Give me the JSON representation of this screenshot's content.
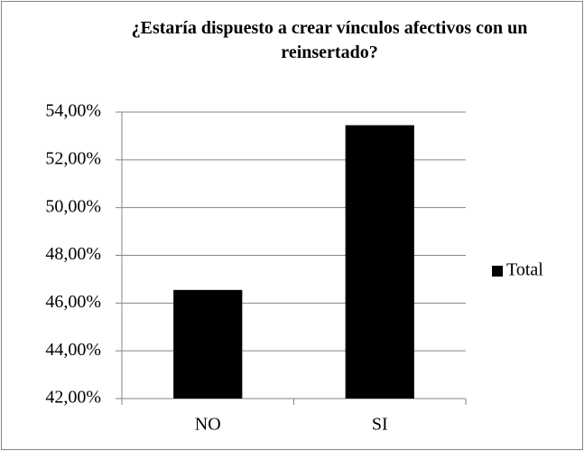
{
  "chart_data": {
    "type": "bar",
    "title": "¿Estaría dispuesto a crear vínculos afectivos con un reinsertado?",
    "categories": [
      "NO",
      "SI"
    ],
    "series": [
      {
        "name": "Total",
        "color": "#000000",
        "values": [
          46.55,
          53.45
        ]
      }
    ],
    "ylim": [
      42,
      54
    ],
    "yticks": [
      {
        "value": 42,
        "label": "42,00%"
      },
      {
        "value": 44,
        "label": "44,00%"
      },
      {
        "value": 46,
        "label": "46,00%"
      },
      {
        "value": 48,
        "label": "48,00%"
      },
      {
        "value": 50,
        "label": "50,00%"
      },
      {
        "value": 52,
        "label": "52,00%"
      },
      {
        "value": 54,
        "label": "54,00%"
      }
    ],
    "grid": true,
    "legend": "right"
  }
}
